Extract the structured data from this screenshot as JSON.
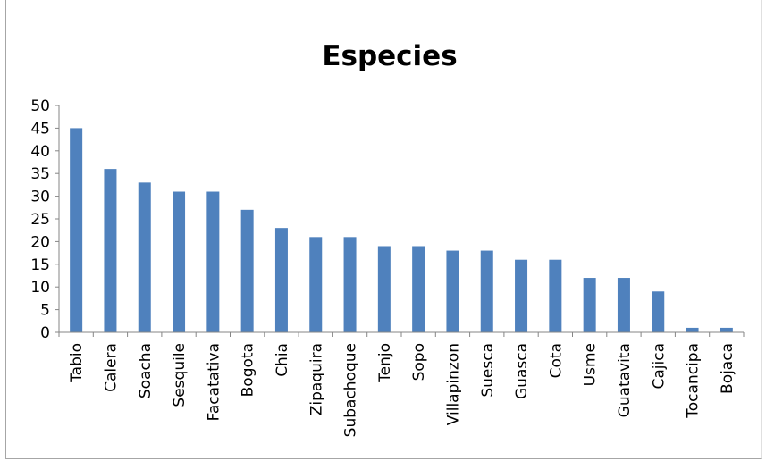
{
  "chart_data": {
    "type": "bar",
    "title": "Especies",
    "xlabel": "",
    "ylabel": "",
    "ylim": [
      0,
      50
    ],
    "yticks": [
      0,
      5,
      10,
      15,
      20,
      25,
      30,
      35,
      40,
      45,
      50
    ],
    "grid": false,
    "legend": "none",
    "bar_color": "#4f81bd",
    "categories": [
      "Tabio",
      "Calera",
      "Soacha",
      "Sesquile",
      "Facatativa",
      "Bogota",
      "Chia",
      "Zipaquira",
      "Subachoque",
      "Tenjo",
      "Sopo",
      "Villapinzon",
      "Suesca",
      "Guasca",
      "Cota",
      "Usme",
      "Guatavita",
      "Cajica",
      "Tocancipa",
      "Bojaca"
    ],
    "values": [
      45,
      36,
      33,
      31,
      31,
      27,
      23,
      21,
      21,
      19,
      19,
      18,
      18,
      16,
      16,
      12,
      12,
      9,
      1,
      1
    ]
  }
}
